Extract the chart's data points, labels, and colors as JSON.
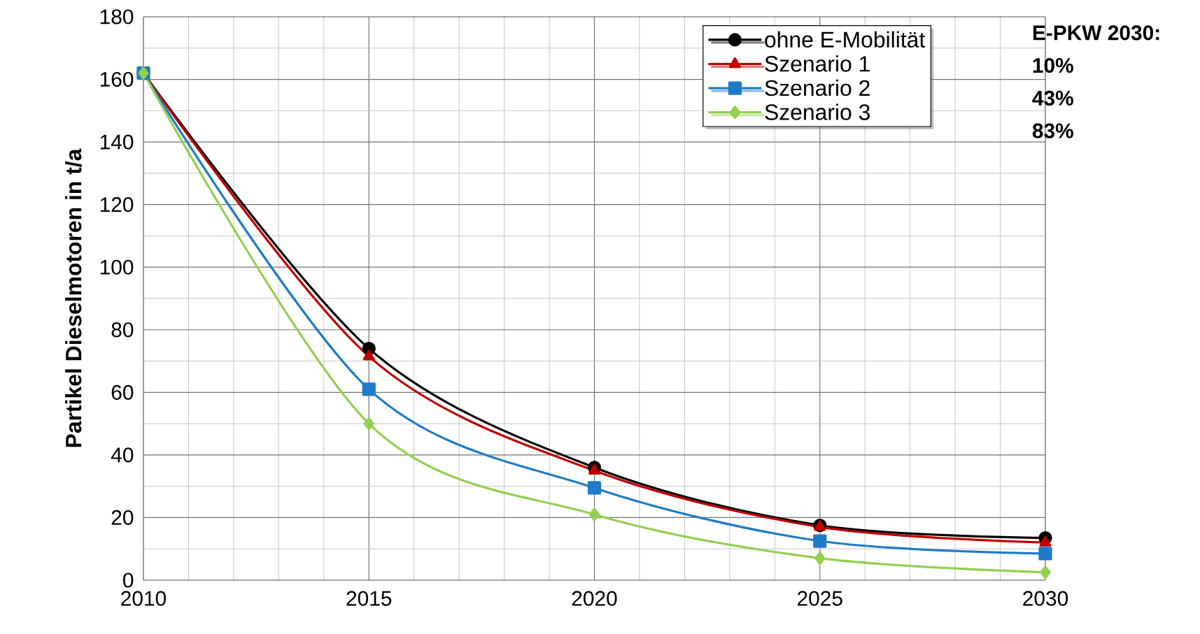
{
  "chart_data": {
    "type": "line",
    "ylabel": "Partikel Dieselmotoren in t/a",
    "x": [
      2010,
      2015,
      2020,
      2025,
      2030
    ],
    "series": [
      {
        "name": "ohne E-Mobilität",
        "color": "#000000",
        "marker": "circle",
        "values": [
          162,
          74,
          36,
          17.5,
          13.5
        ]
      },
      {
        "name": "Szenario 1",
        "color": "#c00000",
        "marker": "triangle",
        "values": [
          162,
          71.5,
          35,
          17,
          12
        ]
      },
      {
        "name": "Szenario 2",
        "color": "#1f7bc8",
        "marker": "square",
        "values": [
          162,
          61,
          29.5,
          12.5,
          8.5
        ]
      },
      {
        "name": "Szenario 3",
        "color": "#92d050",
        "marker": "diamond",
        "values": [
          162,
          50,
          21,
          7,
          2.5
        ]
      }
    ],
    "xlim": [
      2010,
      2030
    ],
    "ylim": [
      0,
      180
    ],
    "xticks": [
      2010,
      2015,
      2020,
      2025,
      2030
    ],
    "yticks": [
      0,
      20,
      40,
      60,
      80,
      100,
      120,
      140,
      160,
      180
    ],
    "grid": true,
    "legend": "top right",
    "annotations": [
      "E-PKW 2030:",
      "10%",
      "43%",
      "83%"
    ]
  }
}
